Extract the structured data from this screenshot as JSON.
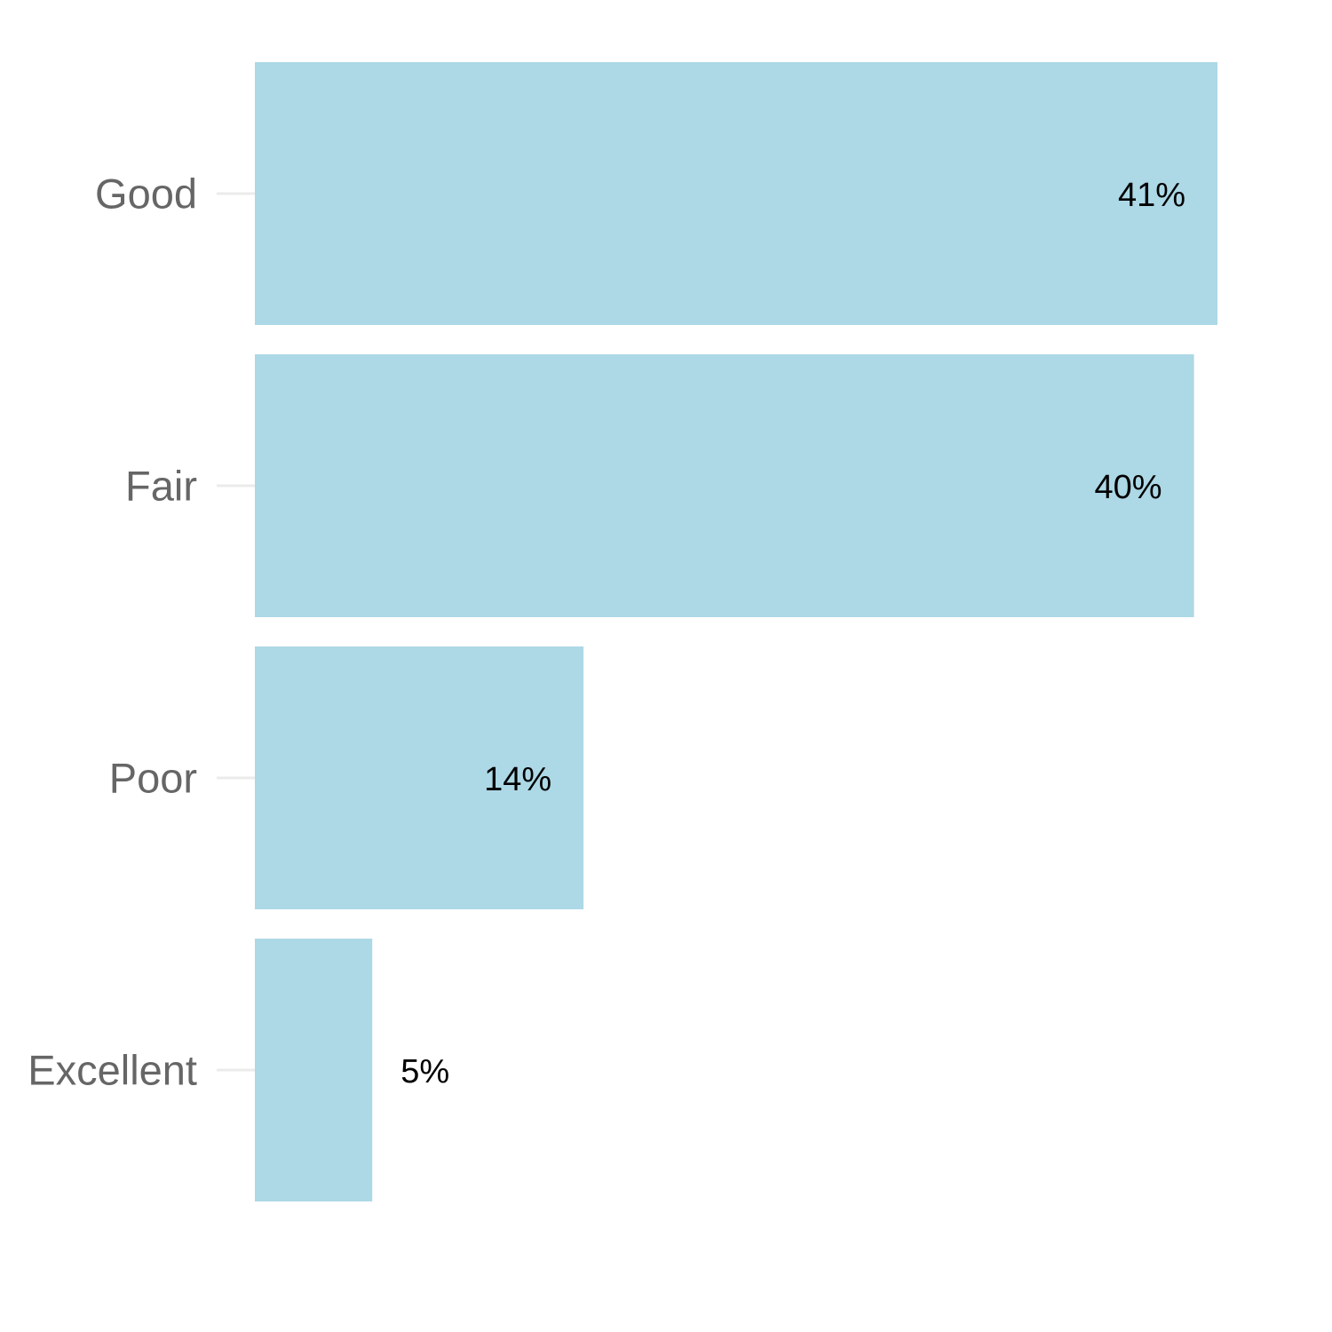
{
  "chart_data": {
    "type": "bar",
    "orientation": "horizontal",
    "categories": [
      "Good",
      "Fair",
      "Poor",
      "Excellent"
    ],
    "values": [
      41,
      40,
      14,
      5
    ],
    "value_labels": [
      "41%",
      "40%",
      "14%",
      "5%"
    ],
    "xlim": [
      0,
      42
    ],
    "title": "",
    "xlabel": "",
    "ylabel": "",
    "grid": false,
    "legend": "none",
    "bar_color": "#add8e6",
    "tick_color": "#ebebeb",
    "label_color": "#666666"
  }
}
